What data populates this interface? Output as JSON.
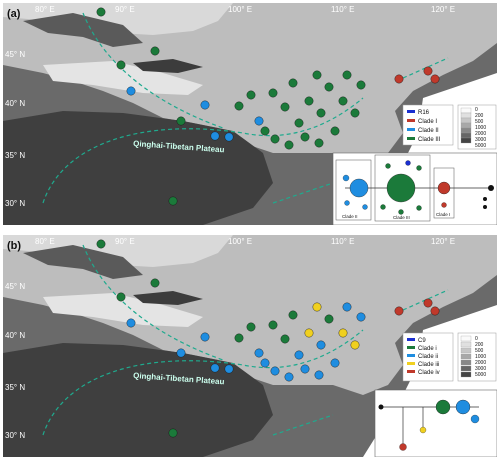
{
  "colors": {
    "clade_I": "#c0392b",
    "clade_II": "#1f8de0",
    "clade_III": "#1b7a3a",
    "clade_iii": "#f0d020",
    "r16": "#1a2fd0",
    "c9": "#1a2fd0",
    "land_light": "#d4d4d4",
    "land_dark": "#4a4a4a",
    "line_teal": "#1faa8e"
  },
  "panels": [
    {
      "id": "a",
      "label": "(a)",
      "top_ticks": [
        "80° E",
        "90° E",
        "100° E",
        "110° E",
        "120° E"
      ],
      "lat_ticks": [
        "45° N",
        "40° N",
        "35° N",
        "30° N"
      ],
      "region_label": "Qinghai-Tibetan Plateau",
      "legend": [
        {
          "name": "R16",
          "color_key": "r16"
        },
        {
          "name": "Clade I",
          "color_key": "clade_I"
        },
        {
          "name": "Clade II",
          "color_key": "clade_II"
        },
        {
          "name": "Clade III",
          "color_key": "clade_III"
        }
      ],
      "elevation_legend": [
        "0",
        "200",
        "500",
        "1000",
        "2000",
        "3000",
        "5000"
      ],
      "network_labels": [
        "Clade II",
        "Clade III",
        "Clade I"
      ]
    },
    {
      "id": "b",
      "label": "(b)",
      "top_ticks": [
        "80° E",
        "90° E",
        "100° E",
        "110° E",
        "120° E"
      ],
      "lat_ticks": [
        "45° N",
        "40° N",
        "35° N",
        "30° N"
      ],
      "region_label": "Qinghai-Tibetan Plateau",
      "legend": [
        {
          "name": "C9",
          "color_key": "c9"
        },
        {
          "name": "Clade i",
          "color_key": "clade_III"
        },
        {
          "name": "Clade ii",
          "color_key": "clade_II"
        },
        {
          "name": "Clade iii",
          "color_key": "clade_iii"
        },
        {
          "name": "Clade iv",
          "color_key": "clade_I"
        }
      ],
      "elevation_legend": [
        "0",
        "200",
        "500",
        "1000",
        "2000",
        "3000",
        "5000"
      ],
      "network_labels": []
    }
  ]
}
